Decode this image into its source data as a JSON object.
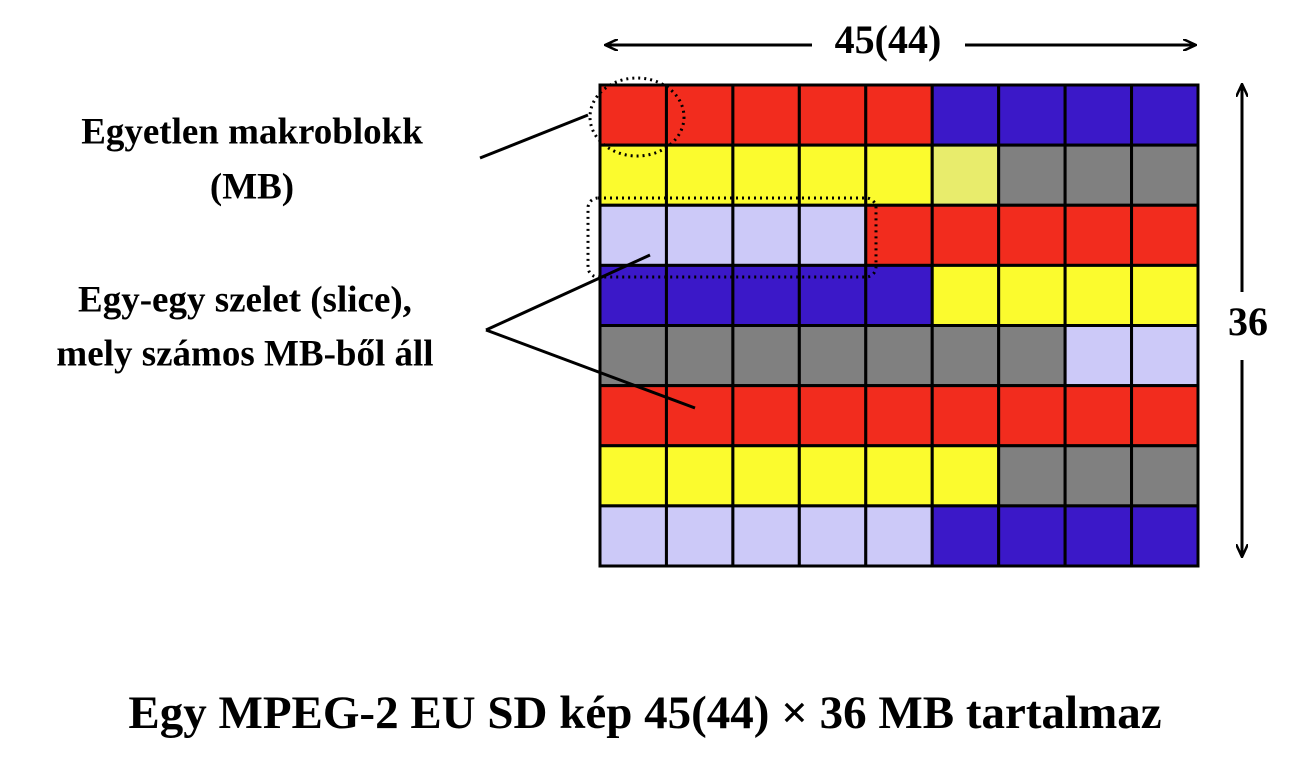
{
  "diagram": {
    "width_label": "45(44)",
    "height_label": "36",
    "macroblock_label": [
      "Egyetlen makroblokk",
      "(MB)"
    ],
    "slice_label": [
      "Egy-egy szelet (slice),",
      "mely számos MB-ből áll"
    ],
    "caption": "Egy MPEG-2 EU SD kép 45(44) × 36 MB tartalmaz"
  }
}
